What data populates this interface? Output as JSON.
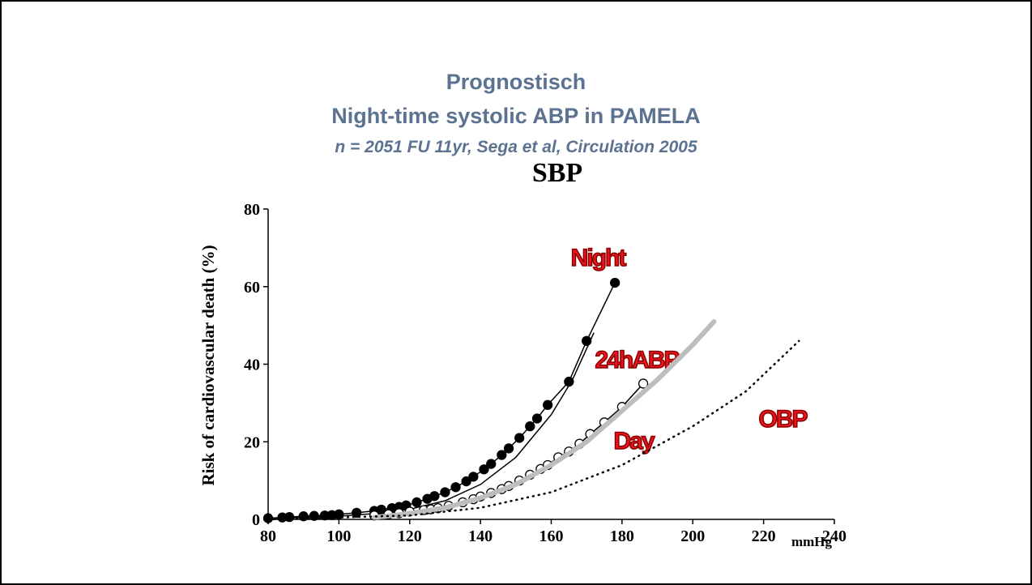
{
  "slide": {
    "title": "Prognostisch",
    "heading": "Night-time systolic ABP in PAMELA",
    "subtitle": "n = 2051 FU  11yr, Sega et al, Circulation 2005"
  },
  "chart_data": {
    "type": "line",
    "title": "SBP",
    "y_label": "Risk of cardiovascular death (%)",
    "x_label": "mmHg",
    "xlim": [
      80,
      240
    ],
    "xticks": [
      80,
      100,
      120,
      140,
      160,
      180,
      200,
      220,
      240
    ],
    "ylim": [
      0,
      80
    ],
    "yticks": [
      0,
      20,
      40,
      60,
      80
    ],
    "series": [
      {
        "name": "Night",
        "color": "#000000",
        "marker": "filled",
        "width": 1.5,
        "dash": "none",
        "x": [
          80,
          84,
          86,
          90,
          93,
          96,
          98,
          100,
          105,
          110,
          112,
          115,
          117,
          119,
          122,
          125,
          127,
          130,
          133,
          136,
          138,
          141,
          143,
          146,
          148,
          151,
          154,
          156,
          159,
          165,
          170,
          178
        ],
        "values": [
          0.3,
          0.5,
          0.6,
          0.8,
          0.9,
          1.0,
          1.1,
          1.3,
          1.7,
          2.2,
          2.5,
          2.9,
          3.2,
          3.6,
          4.4,
          5.3,
          6.0,
          7.0,
          8.3,
          9.8,
          11,
          12.9,
          14.3,
          16.6,
          18.3,
          21,
          24,
          26,
          29.5,
          35.5,
          46,
          61
        ]
      },
      {
        "name": "24hABP",
        "color": "#000000",
        "marker": "none",
        "width": 1.5,
        "dash": "none",
        "x": [
          80,
          100,
          110,
          120,
          130,
          140,
          150,
          160,
          166,
          172
        ],
        "values": [
          0.2,
          0.8,
          1.5,
          2.6,
          4.8,
          9,
          16,
          27,
          36,
          48
        ]
      },
      {
        "name": "Day",
        "color": "#000000",
        "marker": "open",
        "width": 1.5,
        "dash": "none",
        "x": [
          110,
          114,
          117,
          120,
          124,
          126,
          128,
          131,
          135,
          138,
          140,
          143,
          146,
          148,
          151,
          154,
          157,
          159,
          162,
          165,
          168,
          171,
          175,
          180,
          186
        ],
        "values": [
          1,
          1.3,
          1.6,
          2,
          2.4,
          2.6,
          2.9,
          3.5,
          4.4,
          5.2,
          5.9,
          6.8,
          7.8,
          8.6,
          10,
          11.5,
          13,
          14,
          16,
          17.5,
          19.5,
          22,
          25,
          29,
          35
        ]
      },
      {
        "color": "#bdbdbd",
        "marker": "none",
        "width": 6,
        "dash": "none",
        "x": [
          110,
          120,
          130,
          140,
          150,
          160,
          170,
          180,
          190,
          200,
          206
        ],
        "values": [
          0.5,
          1.5,
          3,
          5.5,
          9,
          14,
          20,
          28,
          36,
          45,
          51
        ]
      },
      {
        "name": "OBP",
        "color": "#000000",
        "marker": "none",
        "width": 2.5,
        "dash": "dotted",
        "x": [
          80,
          120,
          140,
          160,
          180,
          200,
          215,
          230
        ],
        "values": [
          0,
          1,
          3,
          7,
          14,
          24,
          33,
          46
        ]
      }
    ]
  }
}
